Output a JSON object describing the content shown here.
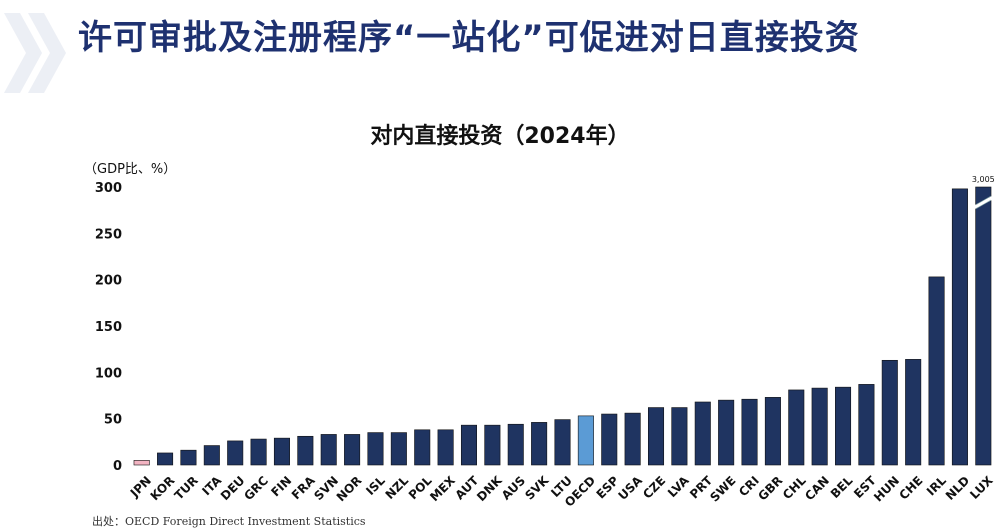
{
  "header": {
    "title": "许可审批及注册程序“一站化”可促进对日直接投资"
  },
  "source": "出处：OECD Foreign Direct Investment Statistics",
  "colors": {
    "title": "#1e3170",
    "bar_default": "#1f3461",
    "bar_jpn": "#f2b4c2",
    "bar_oecd": "#5b9bd5"
  },
  "chart_data": {
    "type": "bar",
    "title": "对内直接投资（2024年）",
    "ylabel": "（GDP比、%）",
    "xlabel": "",
    "ylim": [
      0,
      300
    ],
    "yticks": [
      0,
      50,
      100,
      150,
      200,
      250,
      300
    ],
    "axis_break": "LUX",
    "grid": false,
    "categories": [
      "JPN",
      "KOR",
      "TUR",
      "ITA",
      "DEU",
      "GRC",
      "FIN",
      "FRA",
      "SVN",
      "NOR",
      "ISL",
      "NZL",
      "POL",
      "MEX",
      "AUT",
      "DNK",
      "AUS",
      "SVK",
      "LTU",
      "OECD",
      "ESP",
      "USA",
      "CZE",
      "LVA",
      "PRT",
      "SWE",
      "CRI",
      "GBR",
      "CHL",
      "CAN",
      "BEL",
      "EST",
      "HUN",
      "CHE",
      "IRL",
      "NLD",
      "LUX"
    ],
    "values": [
      5,
      13,
      16,
      21,
      26,
      28,
      29,
      31,
      33,
      33,
      35,
      35,
      38,
      38,
      43,
      43,
      44,
      46,
      49,
      53,
      55,
      56,
      62,
      62,
      68,
      70,
      71,
      73,
      81,
      83,
      84,
      87,
      113,
      114,
      203,
      298,
      3005
    ],
    "data_labels": [
      {
        "category": "LUX",
        "text": "3,005"
      }
    ],
    "highlight": {
      "JPN": "bar_jpn",
      "OECD": "bar_oecd"
    }
  }
}
